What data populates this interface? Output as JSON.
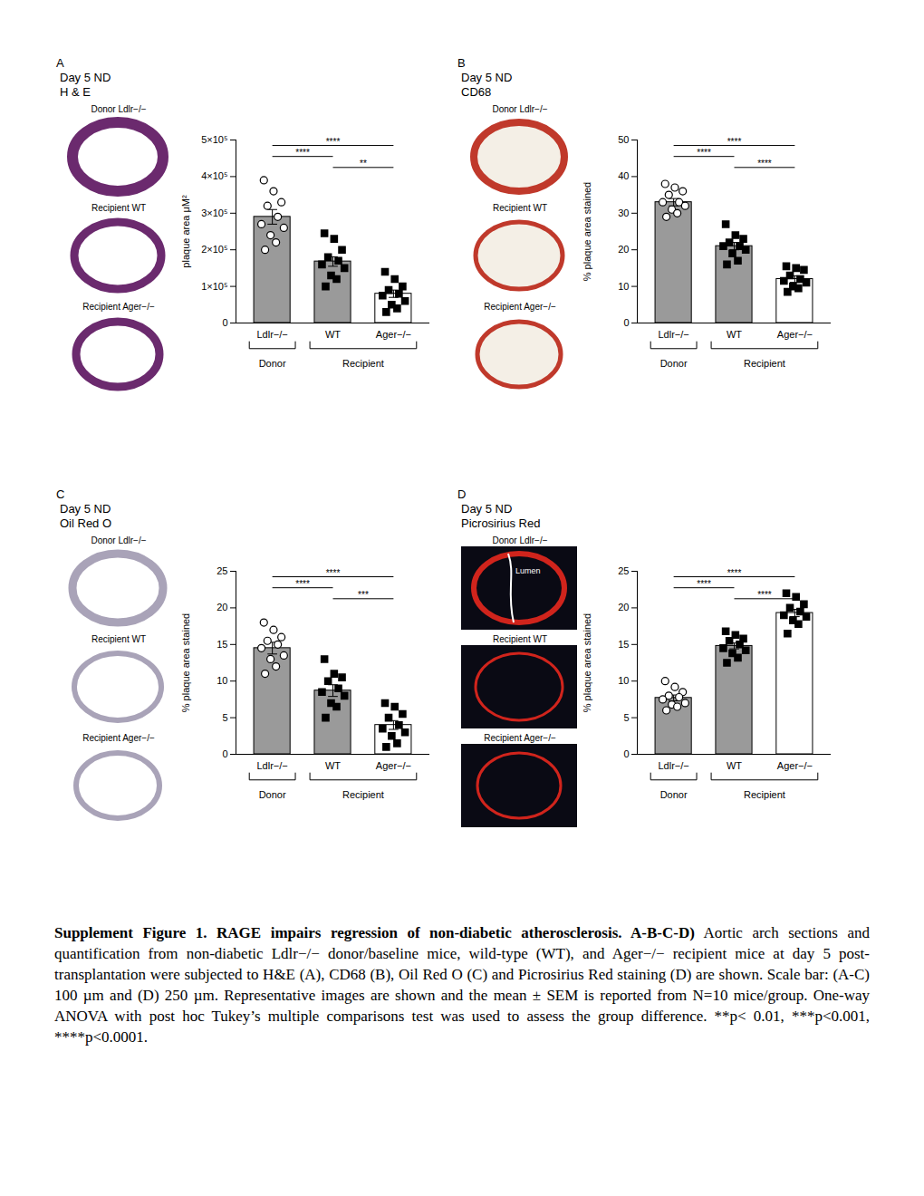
{
  "caption": {
    "title": "Supplement Figure 1.  RAGE impairs regression of non-diabetic atherosclerosis. A-B-C-D)",
    "text": "Aortic arch sections and quantification from non-diabetic Ldlr−/− donor/baseline mice, wild-type (WT), and Ager−/− recipient mice at day 5 post-transplantation were subjected to H&E (A), CD68 (B), Oil Red O (C) and Picrosirius Red staining (D) are shown. Scale bar: (A-C) 100 µm and (D) 250 µm. Representative images are shown and the mean ± SEM is reported from N=10 mice/group. One-way ANOVA with post hoc Tukey’s multiple comparisons test was used to assess the group difference. **p< 0.01, ***p<0.001, ****p<0.0001."
  },
  "chart_data": [
    {
      "type": "bar",
      "panel": "A",
      "title": "Day 5 ND",
      "subtitle": "H & E",
      "images": [
        {
          "label": "Donor Ldlr−/−"
        },
        {
          "label": "Recipient WT"
        },
        {
          "label": "Recipient Ager−/−"
        }
      ],
      "ylabel": "plaque area μM²",
      "categories": [
        "Ldlr−/−",
        "WT",
        "Ager−/−"
      ],
      "values": [
        290000,
        168000,
        80000
      ],
      "errors": [
        20000,
        13000,
        10000
      ],
      "colors": [
        "#9a9a9a",
        "#9a9a9a",
        "#ffffff"
      ],
      "points": [
        {
          "marker": "circle-open",
          "values": [
            390000,
            360000,
            330000,
            320000,
            290000,
            270000,
            260000,
            240000,
            220000,
            200000
          ]
        },
        {
          "marker": "square",
          "values": [
            245000,
            230000,
            200000,
            180000,
            170000,
            160000,
            150000,
            130000,
            120000,
            100000
          ]
        },
        {
          "marker": "square",
          "values": [
            140000,
            120000,
            100000,
            90000,
            80000,
            75000,
            60000,
            50000,
            40000,
            30000
          ]
        }
      ],
      "ylim": [
        0,
        500000
      ],
      "yticks": [
        0,
        {
          "value": 100000,
          "label": "1×10⁵"
        },
        {
          "value": 200000,
          "label": "2×10⁵"
        },
        {
          "value": 300000,
          "label": "3×10⁵"
        },
        {
          "value": 400000,
          "label": "4×10⁵"
        },
        {
          "value": 500000,
          "label": "5×10⁵"
        }
      ],
      "groups": [
        {
          "label": "Donor",
          "categories": [
            "Ldlr−/−"
          ]
        },
        {
          "label": "Recipient",
          "categories": [
            "WT",
            "Ager−/−"
          ]
        }
      ],
      "significance": [
        {
          "pair": [
            "Ldlr−/−",
            "Ager−/−"
          ],
          "label": "****"
        },
        {
          "pair": [
            "Ldlr−/−",
            "WT"
          ],
          "label": "****"
        },
        {
          "pair": [
            "WT",
            "Ager−/−"
          ],
          "label": "**"
        }
      ]
    },
    {
      "type": "bar",
      "panel": "B",
      "title": "Day 5 ND",
      "subtitle": "CD68",
      "images": [
        {
          "label": "Donor Ldlr−/−"
        },
        {
          "label": "Recipient WT"
        },
        {
          "label": "Recipient Ager−/−"
        }
      ],
      "ylabel": "% plaque area stained",
      "categories": [
        "Ldlr−/−",
        "WT",
        "Ager−/−"
      ],
      "values": [
        33,
        21,
        12
      ],
      "errors": [
        1,
        1,
        0.9
      ],
      "colors": [
        "#9a9a9a",
        "#9a9a9a",
        "#ffffff"
      ],
      "points": [
        {
          "marker": "circle-open",
          "values": [
            38,
            37,
            36,
            35,
            33,
            33,
            32,
            31,
            30,
            29
          ]
        },
        {
          "marker": "square",
          "values": [
            27,
            24,
            23,
            22,
            21,
            21,
            20,
            19,
            17,
            16
          ]
        },
        {
          "marker": "square",
          "values": [
            15.5,
            15,
            14.5,
            13,
            12,
            11.5,
            11,
            10,
            9.5,
            8.5
          ]
        }
      ],
      "ylim": [
        0,
        50
      ],
      "yticks": [
        0,
        10,
        20,
        30,
        40,
        50
      ],
      "groups": [
        {
          "label": "Donor",
          "categories": [
            "Ldlr−/−"
          ]
        },
        {
          "label": "Recipient",
          "categories": [
            "WT",
            "Ager−/−"
          ]
        }
      ],
      "significance": [
        {
          "pair": [
            "Ldlr−/−",
            "Ager−/−"
          ],
          "label": "****"
        },
        {
          "pair": [
            "Ldlr−/−",
            "WT"
          ],
          "label": "****"
        },
        {
          "pair": [
            "WT",
            "Ager−/−"
          ],
          "label": "****"
        }
      ]
    },
    {
      "type": "bar",
      "panel": "C",
      "title": "Day 5 ND",
      "subtitle": "Oil Red O",
      "images": [
        {
          "label": "Donor Ldlr−/−"
        },
        {
          "label": "Recipient WT"
        },
        {
          "label": "Recipient Ager−/−"
        }
      ],
      "ylabel": "% plaque area stained",
      "categories": [
        "Ldlr−/−",
        "WT",
        "Ager−/−"
      ],
      "values": [
        14.5,
        8.7,
        4
      ],
      "errors": [
        0.8,
        0.8,
        0.6
      ],
      "colors": [
        "#9a9a9a",
        "#9a9a9a",
        "#ffffff"
      ],
      "points": [
        {
          "marker": "circle-open",
          "values": [
            18,
            17,
            16,
            15.5,
            15,
            14.5,
            13.5,
            13,
            12,
            11
          ]
        },
        {
          "marker": "square",
          "values": [
            13,
            11,
            10.5,
            10,
            9,
            8.5,
            8,
            7,
            6.5,
            5
          ]
        },
        {
          "marker": "square",
          "values": [
            7,
            6.5,
            5.5,
            5,
            4,
            3.5,
            3,
            2.5,
            1.5,
            1
          ]
        }
      ],
      "ylim": [
        0,
        25
      ],
      "yticks": [
        0,
        5,
        10,
        15,
        20,
        25
      ],
      "groups": [
        {
          "label": "Donor",
          "categories": [
            "Ldlr−/−"
          ]
        },
        {
          "label": "Recipient",
          "categories": [
            "WT",
            "Ager−/−"
          ]
        }
      ],
      "significance": [
        {
          "pair": [
            "Ldlr−/−",
            "Ager−/−"
          ],
          "label": "****"
        },
        {
          "pair": [
            "Ldlr−/−",
            "WT"
          ],
          "label": "****"
        },
        {
          "pair": [
            "WT",
            "Ager−/−"
          ],
          "label": "***"
        }
      ]
    },
    {
      "type": "bar",
      "panel": "D",
      "title": "Day 5 ND",
      "subtitle": "Picrosirius Red",
      "images": [
        {
          "label": "Donor Ldlr−/−",
          "annotation": "Lumen"
        },
        {
          "label": "Recipient WT"
        },
        {
          "label": "Recipient Ager−/−"
        }
      ],
      "ylabel": "% plaque area stained",
      "categories": [
        "Ldlr−/−",
        "WT",
        "Ager−/−"
      ],
      "values": [
        7.7,
        14.8,
        19.3
      ],
      "errors": [
        0.4,
        0.4,
        0.5
      ],
      "colors": [
        "#9a9a9a",
        "#9a9a9a",
        "#ffffff"
      ],
      "points": [
        {
          "marker": "circle-open",
          "values": [
            10,
            9.2,
            8.5,
            8,
            7.8,
            7.5,
            7,
            6.8,
            6.5,
            6
          ]
        },
        {
          "marker": "square",
          "values": [
            16.8,
            16.3,
            15.8,
            15.5,
            15,
            14.5,
            14.2,
            13.8,
            13.2,
            12.5
          ]
        },
        {
          "marker": "square",
          "values": [
            22,
            21.5,
            20.5,
            20,
            19.5,
            19,
            18.8,
            18.3,
            17.8,
            16.5
          ]
        }
      ],
      "ylim": [
        0,
        25
      ],
      "yticks": [
        0,
        5,
        10,
        15,
        20,
        25
      ],
      "groups": [
        {
          "label": "Donor",
          "categories": [
            "Ldlr−/−"
          ]
        },
        {
          "label": "Recipient",
          "categories": [
            "WT",
            "Ager−/−"
          ]
        }
      ],
      "significance": [
        {
          "pair": [
            "Ldlr−/−",
            "Ager−/−"
          ],
          "label": "****"
        },
        {
          "pair": [
            "Ldlr−/−",
            "WT"
          ],
          "label": "****"
        },
        {
          "pair": [
            "WT",
            "Ager−/−"
          ],
          "label": "****"
        }
      ]
    }
  ]
}
